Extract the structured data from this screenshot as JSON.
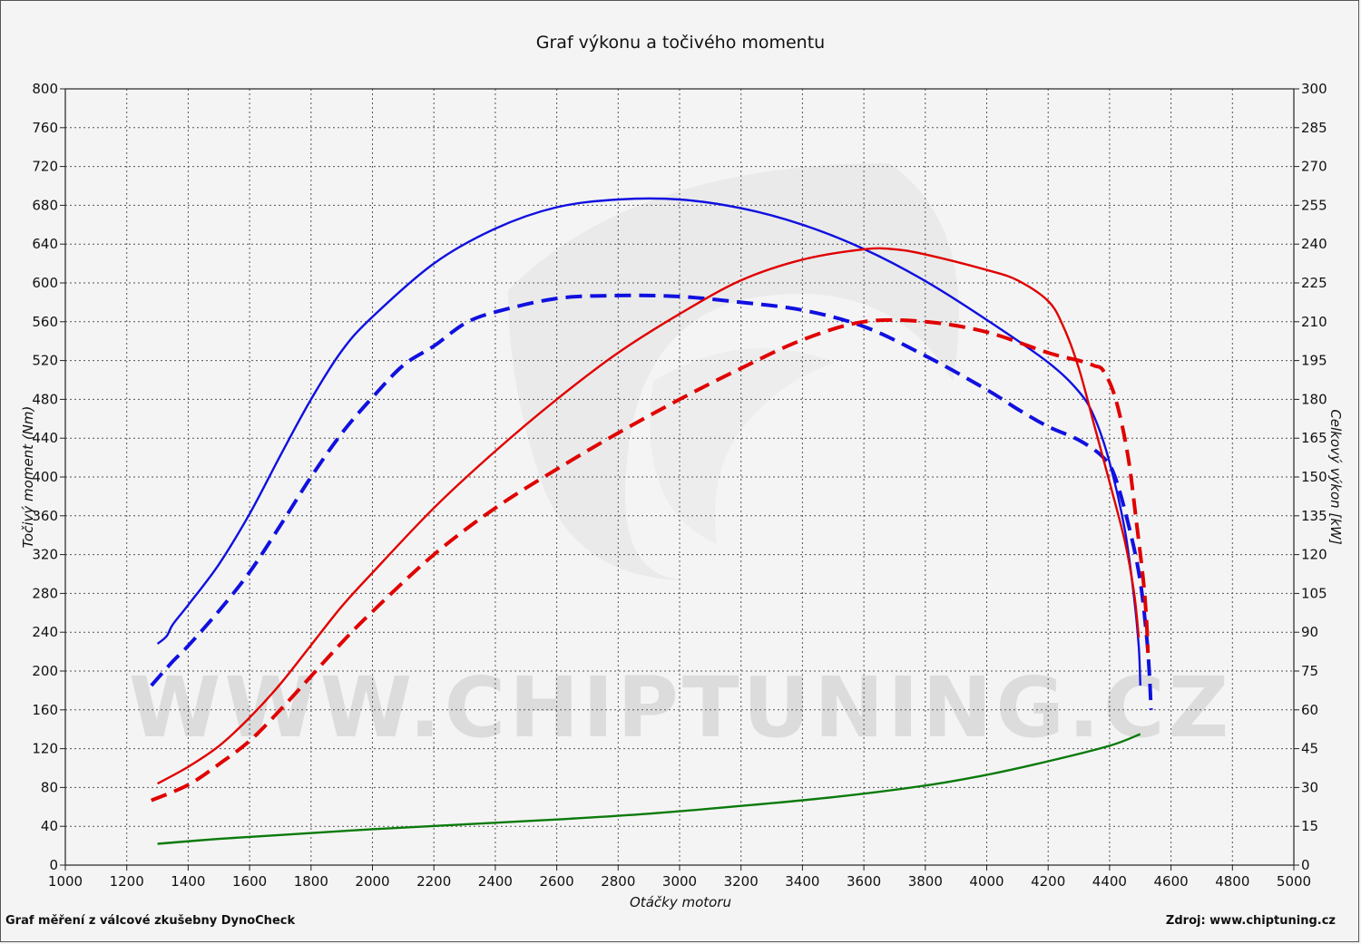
{
  "chart_data": {
    "type": "line",
    "title": "Graf výkonu a točivého momentu",
    "xlabel": "Otáčky motoru",
    "ylabel_left": "Točivý moment (Nm)",
    "ylabel_right": "Celkový výkon [kW]",
    "xlim": [
      1000,
      5000
    ],
    "ylim_left": [
      0,
      800
    ],
    "ylim_right": [
      0,
      300
    ],
    "x_ticks": [
      1000,
      1200,
      1400,
      1600,
      1800,
      2000,
      2200,
      2400,
      2600,
      2800,
      3000,
      3200,
      3400,
      3600,
      3800,
      4000,
      4200,
      4400,
      4600,
      4800,
      5000
    ],
    "y_left_ticks": [
      0,
      40,
      80,
      120,
      160,
      200,
      240,
      280,
      320,
      360,
      400,
      440,
      480,
      520,
      560,
      600,
      640,
      680,
      720,
      760,
      800
    ],
    "y_right_ticks": [
      0,
      15,
      30,
      45,
      60,
      75,
      90,
      105,
      120,
      135,
      150,
      165,
      180,
      195,
      210,
      225,
      240,
      255,
      270,
      285,
      300
    ],
    "grid": true,
    "series": [
      {
        "axis": "left",
        "color": "#1010e0",
        "dashed": false,
        "points": [
          [
            1300,
            228
          ],
          [
            1330,
            236
          ],
          [
            1350,
            248
          ],
          [
            1400,
            268
          ],
          [
            1500,
            310
          ],
          [
            1600,
            362
          ],
          [
            1700,
            422
          ],
          [
            1800,
            480
          ],
          [
            1900,
            530
          ],
          [
            2000,
            565
          ],
          [
            2200,
            620
          ],
          [
            2400,
            656
          ],
          [
            2600,
            678
          ],
          [
            2800,
            686
          ],
          [
            3000,
            686
          ],
          [
            3200,
            677
          ],
          [
            3400,
            660
          ],
          [
            3600,
            635
          ],
          [
            3800,
            602
          ],
          [
            4000,
            562
          ],
          [
            4200,
            518
          ],
          [
            4300,
            488
          ],
          [
            4350,
            462
          ],
          [
            4400,
            415
          ],
          [
            4450,
            345
          ],
          [
            4480,
            275
          ],
          [
            4495,
            225
          ],
          [
            4500,
            185
          ]
        ]
      },
      {
        "axis": "left",
        "color": "#1010e0",
        "dashed": true,
        "points": [
          [
            1280,
            185
          ],
          [
            1350,
            210
          ],
          [
            1400,
            226
          ],
          [
            1500,
            262
          ],
          [
            1600,
            302
          ],
          [
            1700,
            350
          ],
          [
            1800,
            400
          ],
          [
            1900,
            445
          ],
          [
            2000,
            482
          ],
          [
            2100,
            515
          ],
          [
            2200,
            535
          ],
          [
            2300,
            558
          ],
          [
            2400,
            570
          ],
          [
            2600,
            584
          ],
          [
            2800,
            587
          ],
          [
            3000,
            586
          ],
          [
            3200,
            580
          ],
          [
            3400,
            572
          ],
          [
            3600,
            555
          ],
          [
            3800,
            525
          ],
          [
            4000,
            490
          ],
          [
            4100,
            470
          ],
          [
            4200,
            452
          ],
          [
            4300,
            438
          ],
          [
            4380,
            420
          ],
          [
            4420,
            398
          ],
          [
            4470,
            340
          ],
          [
            4500,
            292
          ],
          [
            4520,
            238
          ],
          [
            4530,
            195
          ],
          [
            4535,
            160
          ]
        ]
      },
      {
        "axis": "right",
        "color": "#e00000",
        "dashed": false,
        "points": [
          [
            1300,
            31.5
          ],
          [
            1400,
            38
          ],
          [
            1500,
            46
          ],
          [
            1600,
            57
          ],
          [
            1700,
            70
          ],
          [
            1800,
            85
          ],
          [
            1900,
            100
          ],
          [
            2000,
            113
          ],
          [
            2200,
            138
          ],
          [
            2400,
            160
          ],
          [
            2600,
            180
          ],
          [
            2800,
            198
          ],
          [
            3000,
            213
          ],
          [
            3200,
            226
          ],
          [
            3400,
            234
          ],
          [
            3600,
            238
          ],
          [
            3700,
            238
          ],
          [
            3800,
            236
          ],
          [
            4000,
            230
          ],
          [
            4100,
            226
          ],
          [
            4200,
            218
          ],
          [
            4250,
            208
          ],
          [
            4300,
            192
          ],
          [
            4350,
            170
          ],
          [
            4400,
            148
          ],
          [
            4450,
            125
          ],
          [
            4480,
            105
          ],
          [
            4495,
            88
          ]
        ]
      },
      {
        "axis": "right",
        "color": "#e00000",
        "dashed": true,
        "points": [
          [
            1280,
            25
          ],
          [
            1400,
            31
          ],
          [
            1500,
            39
          ],
          [
            1600,
            48
          ],
          [
            1700,
            60
          ],
          [
            1800,
            73
          ],
          [
            1900,
            86
          ],
          [
            2000,
            98
          ],
          [
            2200,
            120
          ],
          [
            2400,
            138
          ],
          [
            2600,
            153
          ],
          [
            2800,
            167
          ],
          [
            3000,
            180
          ],
          [
            3200,
            192
          ],
          [
            3400,
            203
          ],
          [
            3600,
            210
          ],
          [
            3800,
            210
          ],
          [
            4000,
            206
          ],
          [
            4200,
            198
          ],
          [
            4300,
            195
          ],
          [
            4350,
            193
          ],
          [
            4380,
            191
          ],
          [
            4420,
            180
          ],
          [
            4460,
            158
          ],
          [
            4490,
            130
          ],
          [
            4510,
            110
          ],
          [
            4520,
            95
          ],
          [
            4525,
            82
          ]
        ]
      },
      {
        "axis": "left",
        "color": "#0a7a0a",
        "dashed": false,
        "points": [
          [
            1300,
            22
          ],
          [
            1500,
            27
          ],
          [
            1700,
            31
          ],
          [
            2000,
            37
          ],
          [
            2300,
            42
          ],
          [
            2600,
            47
          ],
          [
            2900,
            53
          ],
          [
            3200,
            61
          ],
          [
            3500,
            70
          ],
          [
            3800,
            82
          ],
          [
            4000,
            93
          ],
          [
            4200,
            107
          ],
          [
            4400,
            123
          ],
          [
            4500,
            135
          ]
        ]
      }
    ]
  },
  "watermark": "WWW.CHIPTUNING.CZ",
  "footer_left": "Graf měření z válcové zkušebny DynoCheck",
  "footer_right": "Zdroj: www.chiptuning.cz"
}
